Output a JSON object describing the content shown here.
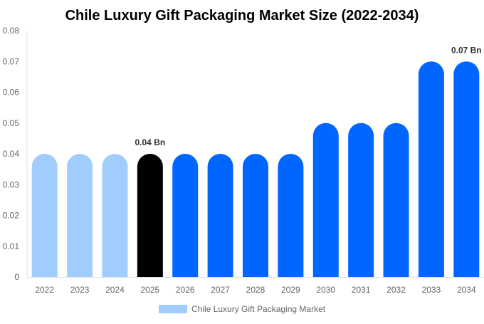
{
  "chart_data": {
    "type": "bar",
    "title": "Chile Luxury Gift Packaging Market Size (2022-2034)",
    "xlabel": "",
    "ylabel": "",
    "ylim": [
      0,
      0.08
    ],
    "yticks": [
      "0",
      "0.01",
      "0.02",
      "0.03",
      "0.04",
      "0.05",
      "0.06",
      "0.07",
      "0.08"
    ],
    "grid": false,
    "legend_placement": "bottom",
    "categories": [
      "2022",
      "2023",
      "2024",
      "2025",
      "2026",
      "2027",
      "2028",
      "2029",
      "2030",
      "2031",
      "2032",
      "2033",
      "2034"
    ],
    "series": [
      {
        "name": "Chile Luxury Gift Packaging Market",
        "values": [
          0.04,
          0.04,
          0.04,
          0.04,
          0.04,
          0.04,
          0.04,
          0.04,
          0.05,
          0.05,
          0.05,
          0.07,
          0.07
        ],
        "colors": [
          "#a0cdfd",
          "#a0cdfd",
          "#a0cdfd",
          "#000000",
          "#0066ff",
          "#0066ff",
          "#0066ff",
          "#0066ff",
          "#0066ff",
          "#0066ff",
          "#0066ff",
          "#0066ff",
          "#0066ff"
        ]
      }
    ],
    "data_labels": [
      {
        "category": "2025",
        "text": "0.04 Bn"
      },
      {
        "category": "2034",
        "text": "0.07 Bn"
      }
    ],
    "legend_color": "#a0cdfd"
  }
}
